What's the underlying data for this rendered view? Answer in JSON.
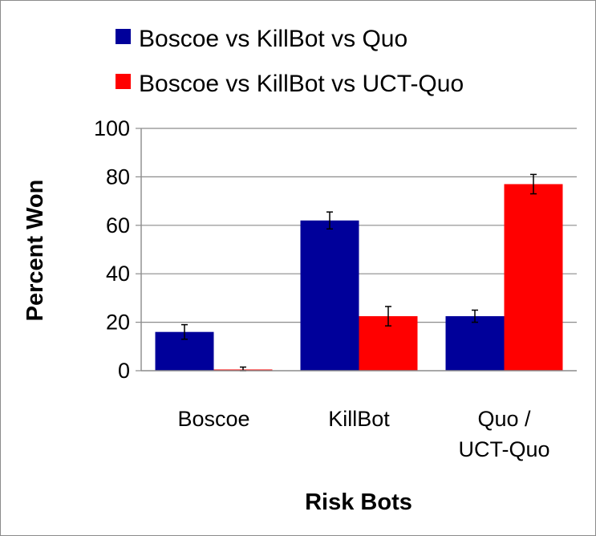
{
  "chart_data": {
    "type": "bar",
    "xlabel": "Risk Bots",
    "ylabel": "Percent Won",
    "ylim": [
      0,
      100
    ],
    "yticks": [
      0,
      20,
      40,
      60,
      80,
      100
    ],
    "grid": true,
    "legend_position": "top",
    "categories": [
      [
        "Boscoe"
      ],
      [
        "KillBot"
      ],
      [
        "Quo /",
        "UCT-Quo"
      ]
    ],
    "series": [
      {
        "name": "Boscoe vs KillBot vs Quo",
        "color": "#00009a",
        "values": [
          16,
          62,
          22.5
        ],
        "errors": [
          3,
          3.5,
          2.5
        ]
      },
      {
        "name": "Boscoe vs KillBot vs UCT-Quo",
        "color": "#ff0000",
        "values": [
          0.5,
          22.5,
          77
        ],
        "errors": [
          1,
          4,
          4
        ]
      }
    ]
  }
}
